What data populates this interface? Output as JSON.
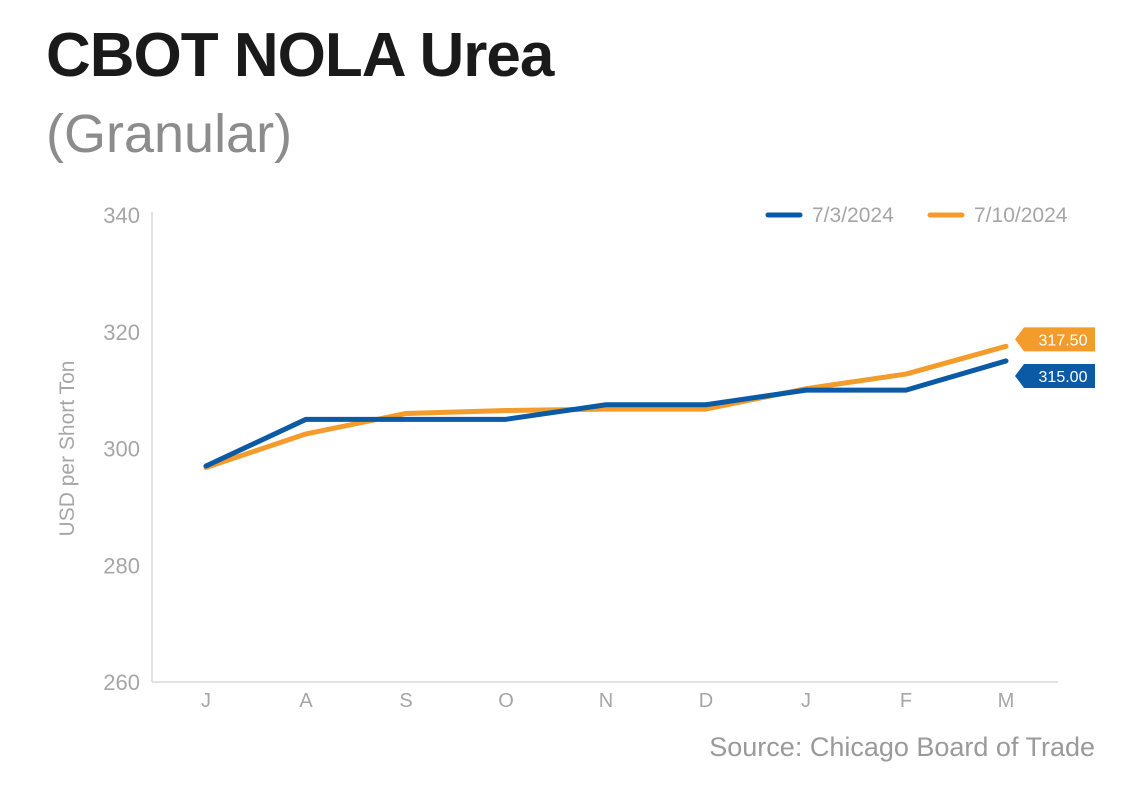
{
  "title": "CBOT NOLA Urea",
  "subtitle": "(Granular)",
  "source": "Source: Chicago Board of Trade",
  "chart_data": {
    "type": "line",
    "title": "CBOT NOLA Urea",
    "subtitle": "(Granular)",
    "ylabel": "USD per Short Ton",
    "xlabel": "",
    "categories": [
      "J",
      "A",
      "S",
      "O",
      "N",
      "D",
      "J",
      "F",
      "M"
    ],
    "ylim": [
      260,
      340
    ],
    "yticks": [
      260,
      280,
      300,
      320,
      340
    ],
    "grid": false,
    "legend_position": "top-right",
    "series": [
      {
        "name": "7/3/2024",
        "color": "#0b5aa6",
        "values": [
          297,
          305,
          305,
          305,
          307.5,
          307.5,
          310,
          310,
          315
        ],
        "end_label": "315.00"
      },
      {
        "name": "7/10/2024",
        "color": "#f39c2c",
        "values": [
          296.75,
          302.5,
          306,
          306.5,
          306.75,
          306.75,
          310.25,
          312.75,
          317.5
        ],
        "end_label": "317.50"
      }
    ]
  }
}
